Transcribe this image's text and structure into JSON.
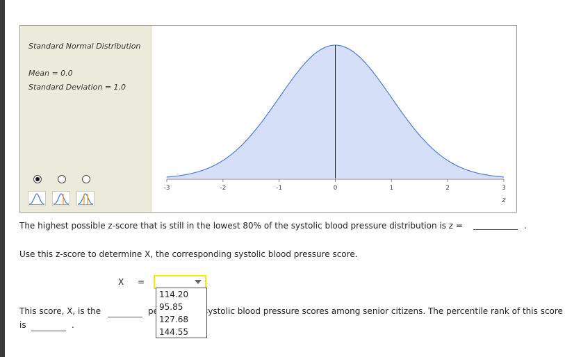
{
  "distribution": {
    "title": "Standard Normal Distribution",
    "mean_text": "Mean = 0.0",
    "sd_text": "Standard Deviation = 1.0",
    "selected_mode": 0
  },
  "chart_data": {
    "type": "area",
    "series": [
      {
        "values": "standard normal density"
      }
    ],
    "x_ticks": [
      "-3",
      "-2",
      "-1",
      "0",
      "1",
      "2",
      "3"
    ],
    "xlim": [
      -3,
      3
    ],
    "xlabel": "z",
    "ylabel": "",
    "mean_line_at": 0,
    "grid": false,
    "fill_color": "#d5dff7",
    "line_color": "#4f7fd1"
  },
  "question1": {
    "text": "The highest possible z-score that is still in the lowest 80% of the systolic blood pressure distribution is z =",
    "answer": "",
    "period": "."
  },
  "question2": {
    "text": "Use this z-score to determine X, the corresponding systolic blood pressure score.",
    "x_label": "X",
    "eq": "=",
    "dropdown_selected": "",
    "options": [
      "114.20",
      "95.85",
      "127.68",
      "144.55"
    ]
  },
  "question3": {
    "text_a": "This score, X, is the",
    "text_b": "pe",
    "text_c": "systolic blood pressure scores among senior citizens. The percentile rank of this score",
    "text_d": "is",
    "period": "."
  },
  "colors": {
    "highlight": "#f1ee00",
    "panel": "#ecebdb"
  }
}
